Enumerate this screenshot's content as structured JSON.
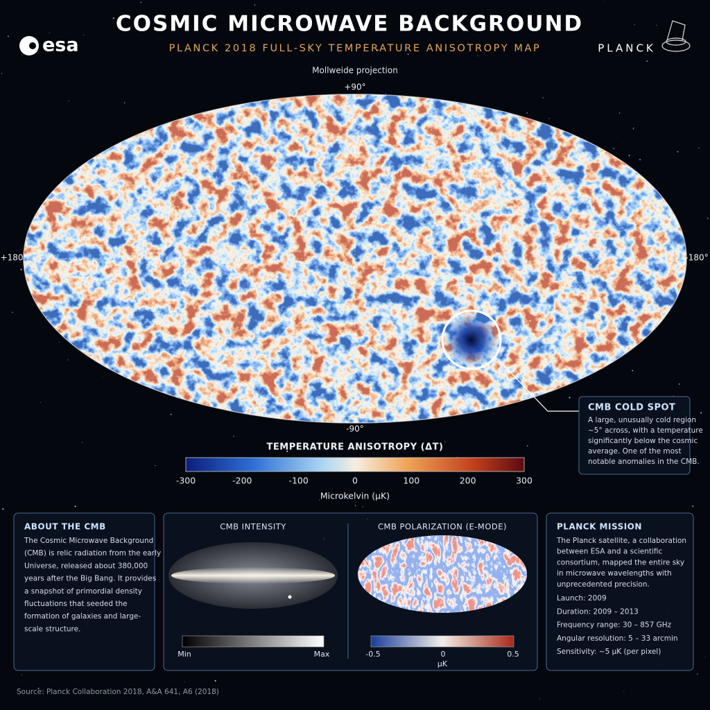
{
  "header": {
    "logo": "esa",
    "title": "COSMIC MICROWAVE BACKGROUND",
    "subtitle": "PLANCK 2018 FULL-SKY TEMPERATURE ANISOTROPY MAP",
    "mission_logo": "PLANCK"
  },
  "map": {
    "projection": "Mollweide projection",
    "labels": {
      "top": "+90°",
      "bottom": "-90°",
      "left": "+180°",
      "right": "-180°"
    }
  },
  "callout": {
    "title": "CMB COLD SPOT",
    "lines": [
      "A large, unusually cold region",
      "~5° across, with a temperature",
      "significantly below the cosmic",
      "average. One of the most",
      "notable anomalies in the CMB."
    ]
  },
  "colorbar": {
    "title": "TEMPERATURE ANISOTROPY (ΔT)",
    "ticks": [
      -300,
      -200,
      -100,
      0,
      100,
      200,
      300
    ],
    "unit": "Microkelvin (µK)"
  },
  "panels": {
    "about": {
      "title": "ABOUT THE CMB",
      "lines": [
        "The Cosmic Microwave Background",
        "(CMB) is relic radiation from the early",
        "Universe, released about 380,000",
        "years after the Big Bang. It provides",
        "a snapshot of primordial density",
        "fluctuations that seeded the",
        "formation of galaxies and large-",
        "scale structure."
      ]
    },
    "intensity": {
      "title": "CMB INTENSITY",
      "min": "Min",
      "max": "Max"
    },
    "polarization": {
      "title": "CMB POLARIZATION (E-MODE)",
      "ticks": [
        -0.5,
        0,
        0.5
      ],
      "unit": "µK"
    },
    "mission": {
      "title": "PLANCK MISSION",
      "lines": [
        "The Planck satellite, a collaboration",
        "between ESA and a scientific",
        "consortium, mapped the entire sky",
        "in microwave wavelengths with",
        "unprecedented precision."
      ],
      "facts": [
        "Launch: 2009",
        "Duration: 2009 – 2013",
        "Frequency range: 30 – 857 GHz",
        "Angular resolution: 5 – 33 arcmin",
        "Sensitivity: ~5 µK (per pixel)"
      ]
    }
  },
  "source": "Source: Planck Collaboration 2018, A&A 641, A6 (2018)"
}
